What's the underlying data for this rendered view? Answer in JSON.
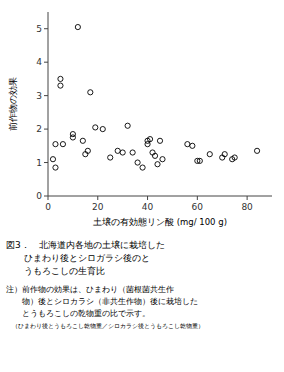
{
  "chart_data": {
    "type": "scatter",
    "xlabel": "土壌の有効態リン酸  (mg/ 100 g)",
    "ylabel": "前作物の効果",
    "x": [
      2,
      3,
      3,
      5,
      5,
      6,
      10,
      10,
      12,
      14,
      15,
      16,
      17,
      19,
      22,
      25,
      28,
      30,
      32,
      34,
      36,
      38,
      40,
      40,
      41,
      42,
      43,
      44,
      45,
      46,
      56,
      58,
      60,
      61,
      65,
      70,
      71,
      74,
      75,
      84
    ],
    "values": [
      1.1,
      0.85,
      1.55,
      3.5,
      3.3,
      1.55,
      1.85,
      1.75,
      5.05,
      1.65,
      1.25,
      1.35,
      3.1,
      2.05,
      2.0,
      1.15,
      1.35,
      1.3,
      2.1,
      1.3,
      1.0,
      0.85,
      1.55,
      1.65,
      1.7,
      1.3,
      1.2,
      0.95,
      1.65,
      1.1,
      1.55,
      1.5,
      1.05,
      1.05,
      1.25,
      1.15,
      1.25,
      1.1,
      1.15,
      1.35
    ],
    "xlim": [
      0,
      90
    ],
    "ylim": [
      0,
      5.5
    ],
    "xticks": [
      0,
      20,
      40,
      60,
      80
    ],
    "yticks": [
      0,
      1,
      2,
      3,
      4,
      5
    ],
    "color": "#000000",
    "marker": "open-circle",
    "grid": false,
    "annotations": [
      "図3．　北海道内各地の土壌に栽培した",
      "　　ひまわり後とシロガラシ後のと",
      "　　うもろこしの生育比",
      "注）前作物の効果は、ひまわり（菌根菌共生作",
      "　　物）後とシロカラシ（非共生作物）後に栽培した",
      "　　とうもろこしの乾物重の比で示す。",
      "　（ひまわり後とうもろこし乾物重／シロカラシ後とうもろこし乾物重）"
    ]
  }
}
